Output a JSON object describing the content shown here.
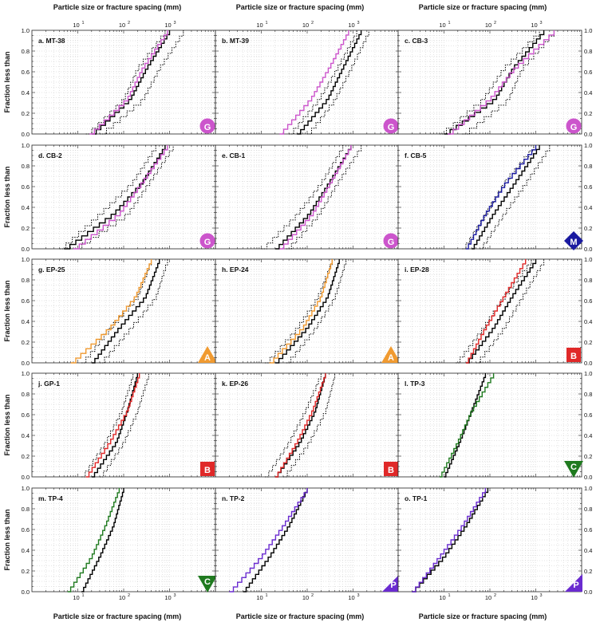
{
  "figure": {
    "top_axis_label": "Particle size or fracture spacing (mm)",
    "bottom_axis_label": "Particle size or fracture spacing (mm)",
    "left_axis_label": "Fraction less than",
    "right_axis_label": "Fraction less than",
    "x_tick_labels": [
      "10",
      "1",
      "10",
      "2",
      "10",
      "3"
    ],
    "y_tick_labels": [
      "0.0",
      "0.2",
      "0.4",
      "0.6",
      "0.8",
      "1.0"
    ]
  },
  "colors": {
    "G": "#cc55cc",
    "M": "#1a1aa0",
    "A": "#f09a30",
    "B": "#e02828",
    "C": "#1f7a1f",
    "P": "#6a2bd0",
    "reference": "#000000"
  },
  "chart_data": [
    {
      "type": "line",
      "label": "a. MT-38",
      "symbol": "G",
      "shape": "circle",
      "scale": "log",
      "xlim": [
        1,
        10000
      ],
      "ylim": [
        0,
        1
      ],
      "grid": true,
      "ref_median": [
        20,
        140,
        320,
        1000
      ],
      "ref_lo_hi": [
        [
          15,
          100,
          200,
          800
        ],
        [
          30,
          260,
          600,
          2000
        ]
      ],
      "series_curve": [
        18,
        120,
        260,
        900
      ],
      "series_color": "G"
    },
    {
      "type": "line",
      "label": "b. MT-39",
      "symbol": "G",
      "shape": "circle",
      "scale": "log",
      "xlim": [
        1,
        10000
      ],
      "ylim": [
        0,
        1
      ],
      "grid": true,
      "ref_median": [
        60,
        280,
        600,
        1500
      ],
      "ref_lo_hi": [
        [
          40,
          180,
          450,
          1200
        ],
        [
          100,
          400,
          900,
          2200
        ]
      ],
      "series_curve": [
        25,
        120,
        300,
        800
      ],
      "series_color": "G"
    },
    {
      "type": "line",
      "label": "c. CB-3",
      "symbol": "G",
      "shape": "circle",
      "scale": "log",
      "xlim": [
        1,
        10000
      ],
      "ylim": [
        0,
        1
      ],
      "grid": true,
      "ref_median": [
        10,
        130,
        320,
        1500
      ],
      "ref_lo_hi": [
        [
          8,
          70,
          200,
          1200
        ],
        [
          25,
          250,
          500,
          2500
        ]
      ],
      "series_curve": [
        12,
        100,
        350,
        2500
      ],
      "series_color": "G"
    },
    {
      "type": "line",
      "label": "d. CB-2",
      "symbol": "G",
      "shape": "circle",
      "scale": "log",
      "xlim": [
        1,
        10000
      ],
      "ylim": [
        0,
        1
      ],
      "grid": true,
      "ref_median": [
        5,
        60,
        250,
        800
      ],
      "ref_lo_hi": [
        [
          4,
          30,
          150,
          500
        ],
        [
          8,
          120,
          350,
          1200
        ]
      ],
      "series_curve": [
        8,
        80,
        250,
        900
      ],
      "series_color": "G"
    },
    {
      "type": "line",
      "label": "e. CB-1",
      "symbol": "G",
      "shape": "circle",
      "scale": "log",
      "xlim": [
        1,
        10000
      ],
      "ylim": [
        0,
        1
      ],
      "grid": true,
      "ref_median": [
        20,
        110,
        300,
        900
      ],
      "ref_lo_hi": [
        [
          10,
          60,
          200,
          600
        ],
        [
          35,
          180,
          450,
          1500
        ]
      ],
      "series_curve": [
        25,
        130,
        320,
        900
      ],
      "series_color": "G"
    },
    {
      "type": "line",
      "label": "f. CB-5",
      "symbol": "M",
      "shape": "diamond",
      "scale": "log",
      "xlim": [
        1,
        10000
      ],
      "ylim": [
        0,
        1
      ],
      "grid": true,
      "ref_median": [
        40,
        120,
        350,
        1200
      ],
      "ref_lo_hi": [
        [
          25,
          80,
          200,
          900
        ],
        [
          60,
          200,
          600,
          2000
        ]
      ],
      "series_curve": [
        30,
        80,
        220,
        1000
      ],
      "series_color": "M"
    },
    {
      "type": "line",
      "label": "g. EP-25",
      "symbol": "A",
      "shape": "triangle-up",
      "scale": "log",
      "xlim": [
        1,
        10000
      ],
      "ylim": [
        0,
        1
      ],
      "grid": true,
      "ref_median": [
        20,
        80,
        300,
        600
      ],
      "ref_lo_hi": [
        [
          12,
          50,
          200,
          400
        ],
        [
          30,
          140,
          500,
          900
        ]
      ],
      "series_curve": [
        7,
        50,
        180,
        400
      ],
      "series_color": "A"
    },
    {
      "type": "line",
      "label": "h. EP-24",
      "symbol": "A",
      "shape": "triangle-up",
      "scale": "log",
      "xlim": [
        1,
        10000
      ],
      "ylim": [
        0,
        1
      ],
      "grid": true,
      "ref_median": [
        20,
        100,
        280,
        500
      ],
      "ref_lo_hi": [
        [
          12,
          60,
          170,
          350
        ],
        [
          35,
          150,
          400,
          700
        ]
      ],
      "series_curve": [
        15,
        80,
        200,
        350
      ],
      "series_color": "A"
    },
    {
      "type": "line",
      "label": "i. EP-28",
      "symbol": "B",
      "shape": "square",
      "scale": "log",
      "xlim": [
        1,
        10000
      ],
      "ylim": [
        0,
        1
      ],
      "grid": true,
      "ref_median": [
        30,
        120,
        300,
        1000
      ],
      "ref_lo_hi": [
        [
          18,
          70,
          200,
          800
        ],
        [
          50,
          200,
          500,
          1500
        ]
      ],
      "series_curve": [
        30,
        80,
        200,
        600
      ],
      "series_color": "B"
    },
    {
      "type": "line",
      "label": "j. GP-1",
      "symbol": "B",
      "shape": "square",
      "scale": "log",
      "xlim": [
        1,
        10000
      ],
      "ylim": [
        0,
        1
      ],
      "grid": true,
      "ref_median": [
        20,
        70,
        120,
        200
      ],
      "ref_lo_hi": [
        [
          12,
          40,
          90,
          160
        ],
        [
          30,
          100,
          200,
          350
        ]
      ],
      "series_curve": [
        15,
        50,
        120,
        220
      ],
      "series_color": "B"
    },
    {
      "type": "line",
      "label": "k. EP-26",
      "symbol": "B",
      "shape": "square",
      "scale": "log",
      "xlim": [
        1,
        10000
      ],
      "ylim": [
        0,
        1
      ],
      "grid": true,
      "ref_median": [
        20,
        70,
        150,
        250
      ],
      "ref_lo_hi": [
        [
          12,
          40,
          90,
          200
        ],
        [
          30,
          110,
          250,
          400
        ]
      ],
      "series_curve": [
        20,
        60,
        130,
        250
      ],
      "series_color": "B"
    },
    {
      "type": "line",
      "label": "l. TP-3",
      "symbol": "C",
      "shape": "triangle-down",
      "scale": "log",
      "xlim": [
        1,
        10000
      ],
      "ylim": [
        0,
        1
      ],
      "grid": true,
      "ref_median": [
        10,
        22,
        40,
        80
      ],
      "series_curve": [
        8,
        20,
        40,
        120
      ],
      "series_color": "C"
    },
    {
      "type": "line",
      "label": "m. TP-4",
      "symbol": "C",
      "shape": "triangle-down",
      "scale": "log",
      "xlim": [
        1,
        10000
      ],
      "ylim": [
        0,
        1
      ],
      "grid": true,
      "ref_median": [
        12,
        30,
        60,
        100
      ],
      "series_curve": [
        6,
        20,
        40,
        80
      ],
      "series_color": "C"
    },
    {
      "type": "line",
      "label": "n. TP-2",
      "symbol": "P",
      "shape": "corner-triangle",
      "scale": "log",
      "xlim": [
        1,
        10000
      ],
      "ylim": [
        0,
        1
      ],
      "grid": true,
      "ref_median": [
        4,
        15,
        40,
        100
      ],
      "series_curve": [
        2,
        10,
        30,
        100
      ],
      "series_color": "P"
    },
    {
      "type": "line",
      "label": "o. TP-1",
      "symbol": "P",
      "shape": "corner-triangle",
      "scale": "log",
      "xlim": [
        1,
        10000
      ],
      "ylim": [
        0,
        1
      ],
      "grid": true,
      "ref_median": [
        2,
        10,
        30,
        90
      ],
      "series_curve": [
        2,
        8,
        25,
        80
      ],
      "series_color": "P"
    }
  ]
}
